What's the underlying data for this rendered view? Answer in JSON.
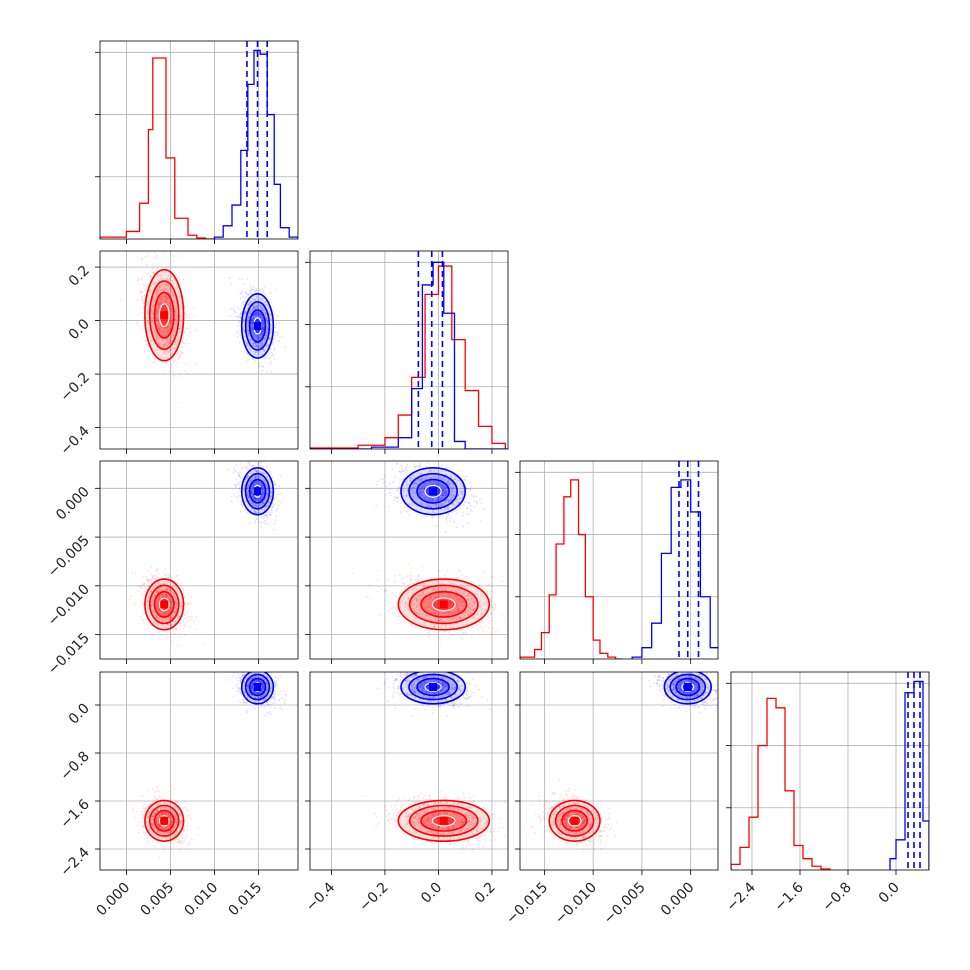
{
  "chart_data": {
    "type": "corner",
    "colors": {
      "series_a": "#ff0000",
      "series_b": "#0000ff"
    },
    "grid": true,
    "parameters": [
      {
        "index": 0,
        "range": [
          -0.003,
          0.0195
        ],
        "ticks": [
          0.0,
          0.005,
          0.01,
          0.015
        ],
        "tick_labels": [
          "0.000",
          "0.005",
          "0.010",
          "0.015"
        ]
      },
      {
        "index": 1,
        "range": [
          -0.48,
          0.26
        ],
        "ticks": [
          -0.4,
          -0.2,
          0.0,
          0.2
        ],
        "tick_labels": [
          "−0.4",
          "−0.2",
          "0.0",
          "0.2"
        ]
      },
      {
        "index": 2,
        "range": [
          -0.0175,
          0.0028
        ],
        "ticks": [
          -0.015,
          -0.01,
          -0.005,
          0.0
        ],
        "tick_labels": [
          "−0.015",
          "−0.010",
          "−0.005",
          "0.000"
        ]
      },
      {
        "index": 3,
        "range": [
          -2.75,
          0.55
        ],
        "ticks": [
          -2.4,
          -1.6,
          -0.8,
          0.0
        ],
        "tick_labels": [
          "−2.4",
          "−1.6",
          "−0.8",
          "0.0"
        ]
      }
    ],
    "series": [
      {
        "color": "#ff0000",
        "mean": [
          0.0043,
          0.02,
          -0.0119,
          -1.93
        ],
        "std": [
          0.0011,
          0.085,
          0.0013,
          0.17
        ],
        "histograms": [
          {
            "bins": [
              -0.003,
              0.0,
              0.0015,
              0.0025,
              0.003,
              0.0045,
              0.0055,
              0.007,
              0.008,
              0.009,
              0.01
            ],
            "heights": [
              0.01,
              0.04,
              0.19,
              0.58,
              0.96,
              0.43,
              0.11,
              0.02,
              0.005,
              0.0
            ]
          },
          {
            "bins": [
              -0.48,
              -0.3,
              -0.2,
              -0.15,
              -0.1,
              -0.05,
              0.0,
              0.05,
              0.1,
              0.15,
              0.2,
              0.25
            ],
            "heights": [
              0.005,
              0.02,
              0.06,
              0.18,
              0.38,
              0.82,
              0.97,
              0.58,
              0.31,
              0.12,
              0.03
            ]
          },
          {
            "bins": [
              -0.0175,
              -0.016,
              -0.0153,
              -0.0145,
              -0.0138,
              -0.013,
              -0.0123,
              -0.0115,
              -0.0108,
              -0.01,
              -0.0093,
              -0.0085,
              -0.0077,
              -0.007
            ],
            "heights": [
              0.01,
              0.05,
              0.14,
              0.34,
              0.61,
              0.86,
              0.95,
              0.66,
              0.33,
              0.1,
              0.03,
              0.01,
              0.0
            ]
          },
          {
            "bins": [
              -2.75,
              -2.6,
              -2.45,
              -2.3,
              -2.15,
              -2.0,
              -1.85,
              -1.7,
              -1.55,
              -1.4,
              -1.25,
              -1.1
            ],
            "heights": [
              0.03,
              0.12,
              0.28,
              0.66,
              0.91,
              0.86,
              0.42,
              0.13,
              0.06,
              0.02,
              0.005
            ]
          }
        ]
      },
      {
        "color": "#0000ff",
        "mean": [
          0.0149,
          -0.02,
          -0.0003,
          0.3
        ],
        "std": [
          0.0009,
          0.06,
          0.0012,
          0.14
        ],
        "quantile_lines": [
          [
            0.0137,
            0.0149,
            0.016
          ],
          [
            -0.075,
            -0.025,
            0.015
          ],
          [
            -0.0012,
            -0.0003,
            0.0008
          ],
          [
            0.2,
            0.3,
            0.4
          ]
        ],
        "histograms": [
          {
            "bins": [
              0.01,
              0.011,
              0.012,
              0.013,
              0.0138,
              0.0145,
              0.0152,
              0.016,
              0.0168,
              0.0175,
              0.0185,
              0.0195
            ],
            "heights": [
              0.01,
              0.07,
              0.18,
              0.47,
              0.82,
              1.0,
              0.98,
              0.66,
              0.29,
              0.06,
              0.01
            ]
          },
          {
            "bins": [
              -0.48,
              -0.25,
              -0.15,
              -0.1,
              -0.06,
              -0.02,
              0.02,
              0.06,
              0.1,
              0.26
            ],
            "heights": [
              0.0,
              0.01,
              0.06,
              0.32,
              0.87,
              0.99,
              0.72,
              0.04,
              0.0
            ]
          },
          {
            "bins": [
              -0.006,
              -0.005,
              -0.004,
              -0.003,
              -0.002,
              -0.001,
              0.0,
              0.001,
              0.002,
              0.003
            ],
            "heights": [
              0.01,
              0.06,
              0.19,
              0.56,
              0.91,
              0.95,
              0.78,
              0.33,
              0.06
            ]
          },
          {
            "bins": [
              -0.1,
              0.0,
              0.15,
              0.3,
              0.45,
              0.55
            ],
            "heights": [
              0.06,
              0.16,
              0.94,
              1.0,
              0.26
            ]
          }
        ]
      }
    ]
  }
}
